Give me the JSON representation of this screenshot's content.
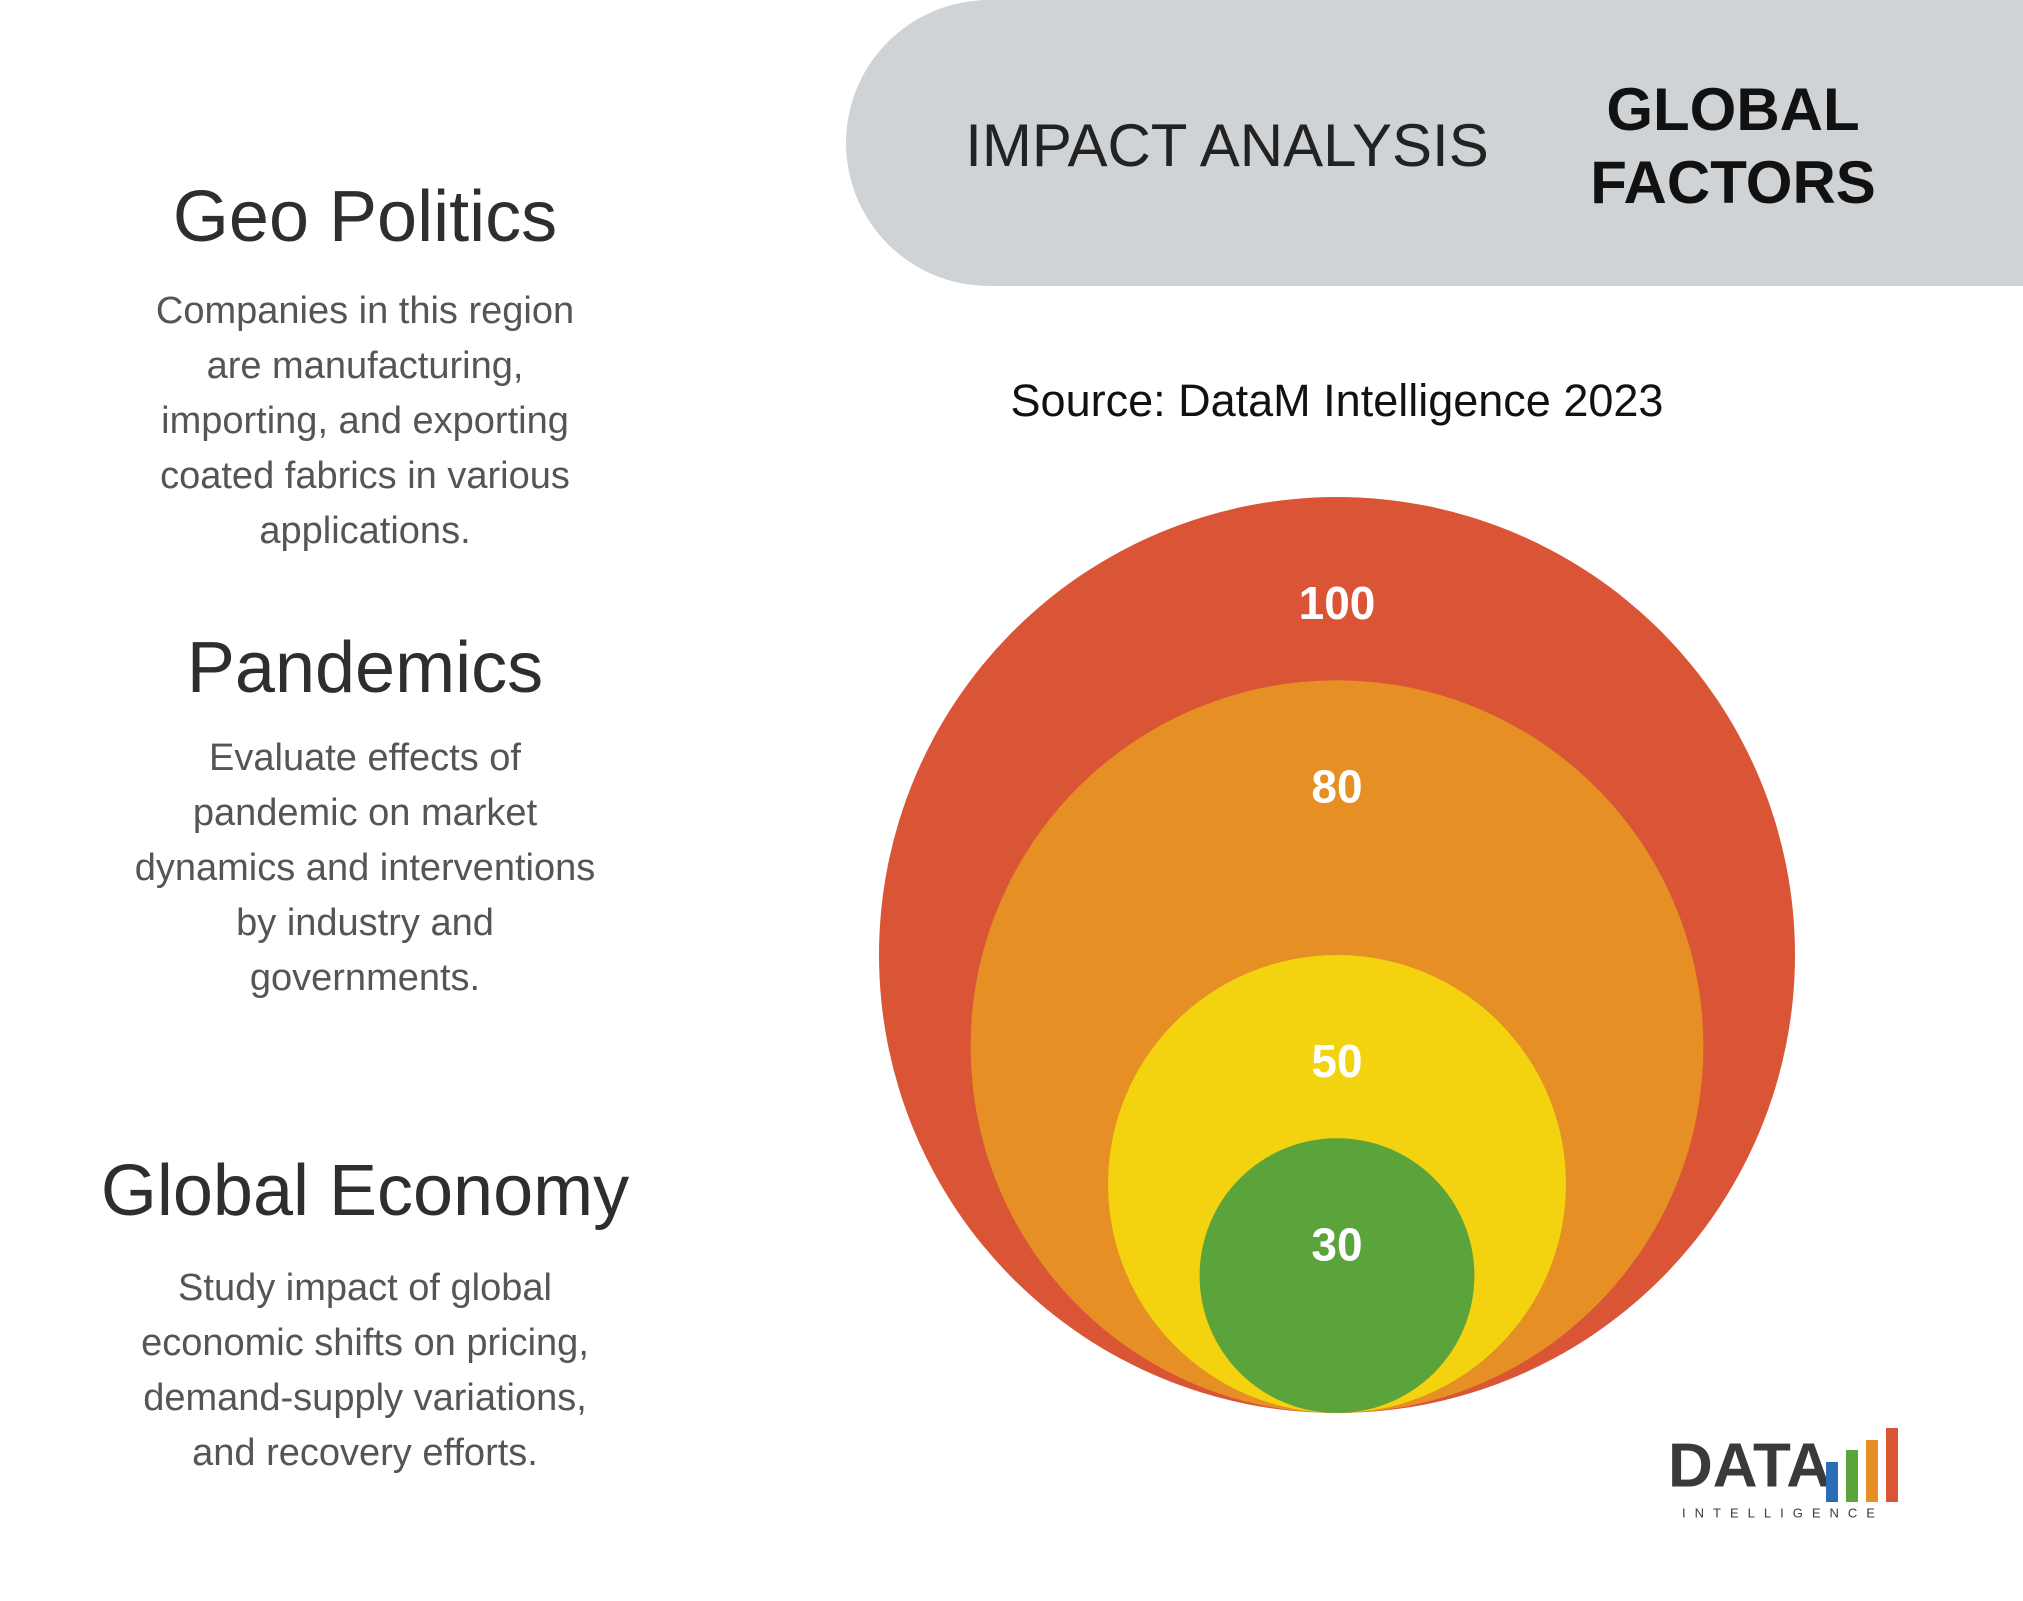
{
  "header": {
    "title": "IMPACT ANALYSIS",
    "badge": [
      "GLOBAL",
      "FACTORS"
    ]
  },
  "source": "Source: DataM Intelligence 2023",
  "factors": [
    {
      "title": "Geo Politics",
      "body": [
        "Companies in this region",
        "are manufacturing,",
        "importing, and exporting",
        "coated fabrics in various",
        "applications."
      ]
    },
    {
      "title": "Pandemics",
      "body": [
        "Evaluate effects of",
        "pandemic on market",
        "dynamics and interventions",
        "by industry and",
        "governments."
      ]
    },
    {
      "title": "Global Economy",
      "body": [
        "Study impact of global",
        "economic shifts on pricing,",
        "demand-supply variations,",
        "and recovery efforts."
      ]
    }
  ],
  "rings": [
    {
      "value": 100,
      "color": "#d95535"
    },
    {
      "value": 80,
      "color": "#e58f25"
    },
    {
      "value": 50,
      "color": "#f3d210"
    },
    {
      "value": 30,
      "color": "#5ba33b"
    }
  ],
  "logo": {
    "text": "DATA",
    "subtext": "INTELLIGENCE"
  }
}
